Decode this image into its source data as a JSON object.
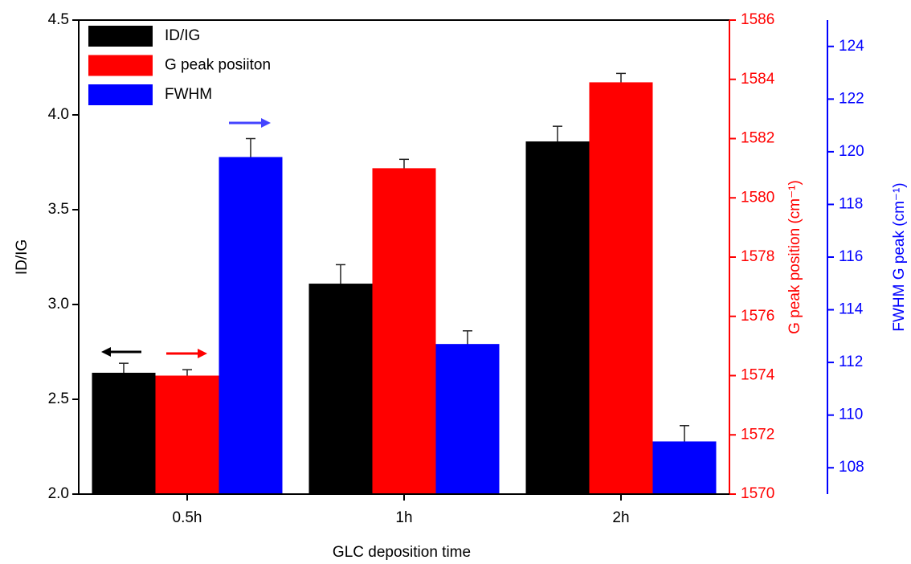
{
  "chart_data": {
    "type": "bar",
    "xlabel": "GLC deposition time",
    "ylabel": "ID/IG",
    "y2label": "G peak position (cm⁻¹)",
    "y3label": "FWHM G peak  (cm⁻¹)",
    "categories": [
      "0.5h",
      "1h",
      "2h"
    ],
    "series": [
      {
        "name": "ID/IG",
        "color": "#000000",
        "axis": "y",
        "values": [
          2.64,
          3.11,
          3.86
        ],
        "errors": [
          0.05,
          0.1,
          0.08
        ]
      },
      {
        "name": "G peak posiiton",
        "color": "#ff0000",
        "axis": "y2",
        "values": [
          1574.0,
          1581.0,
          1583.9
        ],
        "errors": [
          0.2,
          0.3,
          0.3
        ]
      },
      {
        "name": "FWHM",
        "color": "#0000ff",
        "axis": "y3",
        "values": [
          119.8,
          112.7,
          109.0
        ],
        "errors": [
          0.7,
          0.5,
          0.6
        ]
      }
    ],
    "ylim": [
      2.0,
      4.5
    ],
    "yticks": [
      {
        "value": 2,
        "label": "2.0"
      },
      2.5,
      {
        "value": 3,
        "label": "3.0"
      },
      3.5,
      {
        "value": 4,
        "label": "4.0"
      },
      4.5
    ],
    "y2lim": [
      1570,
      1586
    ],
    "y2ticks": [
      1570,
      1572,
      1574,
      1576,
      1578,
      1580,
      1582,
      1584,
      1586
    ],
    "y3lim": [
      107,
      125
    ],
    "y3ticks": [
      108,
      110,
      112,
      114,
      116,
      118,
      120,
      122,
      124
    ],
    "legend": "upper left"
  }
}
